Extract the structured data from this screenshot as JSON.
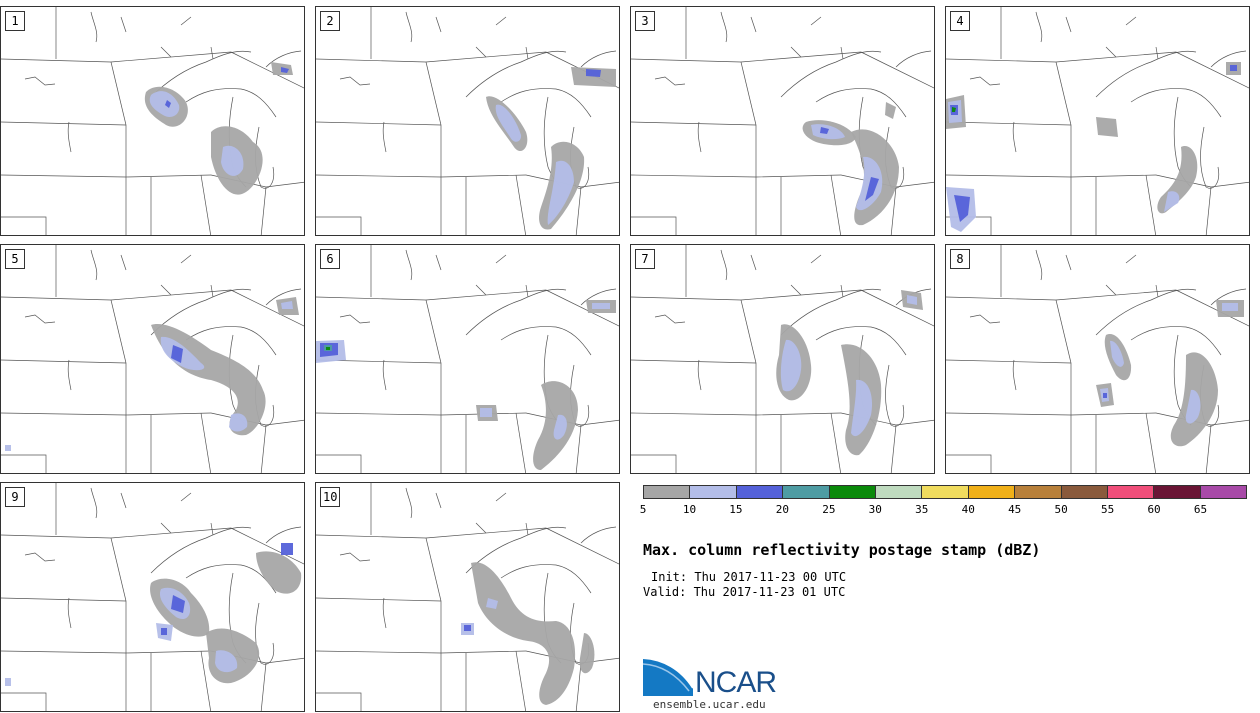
{
  "stamps": [
    {
      "label": "1"
    },
    {
      "label": "2"
    },
    {
      "label": "3"
    },
    {
      "label": "4"
    },
    {
      "label": "5"
    },
    {
      "label": "6"
    },
    {
      "label": "7"
    },
    {
      "label": "8"
    },
    {
      "label": "9"
    },
    {
      "label": "10"
    }
  ],
  "colorbar": {
    "colors": [
      "#a6a6a6",
      "#b3bde8",
      "#5461d9",
      "#4e9ca3",
      "#0a8a0a",
      "#bfdbbf",
      "#f0dc5e",
      "#f0b019",
      "#b8803a",
      "#8a5a3c",
      "#f04e7a",
      "#6a1535",
      "#a84aa8"
    ],
    "labels": [
      "5",
      "10",
      "15",
      "20",
      "25",
      "30",
      "35",
      "40",
      "45",
      "50",
      "55",
      "60",
      "65"
    ]
  },
  "title": "Max. column reflectivity postage stamp (dBZ)",
  "init_text": "Init: Thu 2017-11-23 00 UTC",
  "valid_text": "Valid: Thu 2017-11-23 01 UTC",
  "logo": {
    "name": "NCAR",
    "url": "ensemble.ucar.edu"
  }
}
